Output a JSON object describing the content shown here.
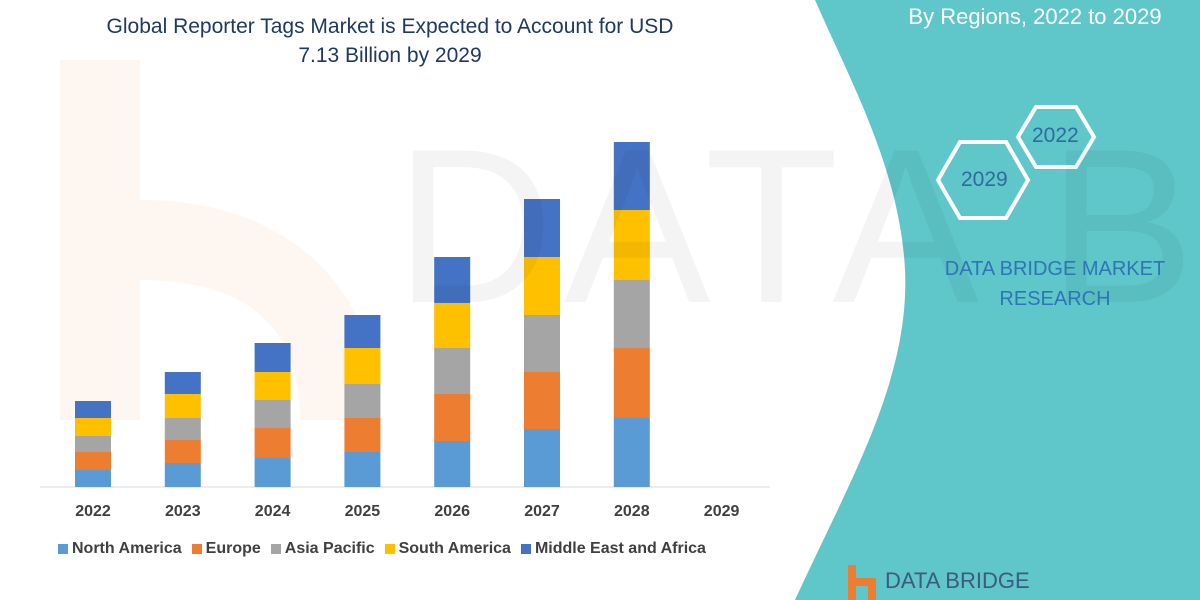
{
  "title_line1": "Global Reporter Tags Market is Expected to Account for USD",
  "title_line2": "7.13 Billion by 2029",
  "side_panel": {
    "subtitle": "By Regions, 2022 to 2029",
    "hex_2022": "2022",
    "hex_2029": "2029",
    "brand_line1": "DATA BRIDGE MARKET",
    "brand_line2": "RESEARCH",
    "logo_text": "DATA BRIDGE",
    "panel_color": "#5fc6c9"
  },
  "chart_data": {
    "type": "bar",
    "stacked": true,
    "title": "Global Reporter Tags Market is Expected to Account for USD 7.13 Billion by 2029",
    "xlabel": "",
    "ylabel": "",
    "y_axis_shown": false,
    "grid": false,
    "legend_position": "bottom",
    "ylim": [
      0,
      360
    ],
    "categories": [
      "2022",
      "2023",
      "2024",
      "2025",
      "2026",
      "2027",
      "2028",
      "2029"
    ],
    "series": [
      {
        "name": "North America",
        "color": "#5b9bd5",
        "values": [
          17,
          24,
          29,
          35,
          46,
          58,
          69,
          null
        ]
      },
      {
        "name": "Europe",
        "color": "#ed7d31",
        "values": [
          18,
          23,
          30,
          34,
          47,
          57,
          70,
          null
        ]
      },
      {
        "name": "Asia Pacific",
        "color": "#a5a5a5",
        "values": [
          16,
          22,
          28,
          34,
          46,
          57,
          68,
          null
        ]
      },
      {
        "name": "South America",
        "color": "#ffc000",
        "values": [
          18,
          24,
          28,
          36,
          45,
          58,
          70,
          null
        ]
      },
      {
        "name": "Middle East and Africa",
        "color": "#4472c4",
        "values": [
          17,
          22,
          29,
          33,
          46,
          58,
          68,
          null
        ]
      }
    ]
  }
}
